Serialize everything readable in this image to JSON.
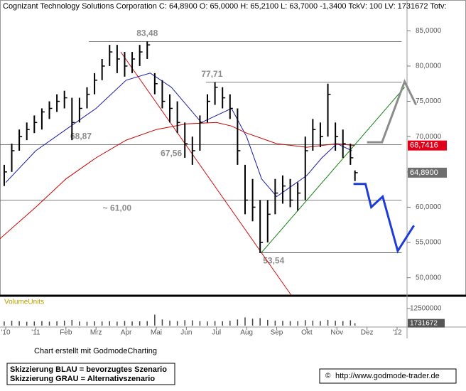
{
  "chart_data": {
    "type": "ohlc",
    "title": "Cognizant Technology Solutions Corporation C: 64,8900 O: 65,0000 H: 65,2100 L: 63,7000 -1,3400 TckV: 100 LV: 1731672 Totv:",
    "xlim": [
      -0.19,
      13.33
    ],
    "xticks": [
      {
        "value": 0,
        "label": "'10"
      },
      {
        "value": 1,
        "label": "'11"
      },
      {
        "value": 2,
        "label": "Feb"
      },
      {
        "value": 3,
        "label": "Mrz"
      },
      {
        "value": 4,
        "label": "Apr"
      },
      {
        "value": 5,
        "label": "Mai"
      },
      {
        "value": 6,
        "label": "Jun"
      },
      {
        "value": 7,
        "label": "Jul"
      },
      {
        "value": 8,
        "label": "Aug"
      },
      {
        "value": 9,
        "label": "Sep"
      },
      {
        "value": 10,
        "label": "Okt"
      },
      {
        "value": 11,
        "label": "Nov"
      },
      {
        "value": 12,
        "label": "Dez"
      },
      {
        "value": 13,
        "label": "'12"
      }
    ],
    "ylim": [
      47.55,
      87.75
    ],
    "yticks": [
      {
        "value": 50,
        "label": "50,0000"
      },
      {
        "value": 55,
        "label": "55,0000"
      },
      {
        "value": 60,
        "label": "60,0000"
      },
      {
        "value": 65,
        "label": "65,0000"
      },
      {
        "value": 70,
        "label": "70,0000"
      },
      {
        "value": 75,
        "label": "75,0000"
      },
      {
        "value": 80,
        "label": "80,0000"
      },
      {
        "value": 85,
        "label": "85,0000"
      }
    ],
    "color": "#000000",
    "x": [
      -0.05,
      0.2,
      0.45,
      0.7,
      0.95,
      1.2,
      1.45,
      1.7,
      1.95,
      2.2,
      2.45,
      2.7,
      2.95,
      3.2,
      3.45,
      3.7,
      3.95,
      4.2,
      4.45,
      4.7,
      4.95,
      5.2,
      5.45,
      5.7,
      5.95,
      6.2,
      6.45,
      6.7,
      6.95,
      7.2,
      7.45,
      7.7,
      7.95,
      8.2,
      8.45,
      8.7,
      8.95,
      9.2,
      9.45,
      9.7,
      9.95,
      10.2,
      10.45,
      10.7,
      10.95,
      11.2,
      11.45,
      11.6
    ],
    "high": [
      66,
      69,
      71,
      72,
      73,
      74,
      75,
      76,
      76.5,
      75.5,
      75.5,
      77,
      79,
      81,
      83,
      83,
      82,
      82,
      83,
      83.48,
      79,
      78,
      76,
      75,
      72,
      70,
      73,
      76,
      77.71,
      77,
      76,
      74,
      66,
      64,
      61,
      61,
      64,
      64.5,
      64,
      63.5,
      70,
      72.5,
      72,
      77.5,
      72,
      71,
      69,
      65.21
    ],
    "low": [
      63,
      65,
      68,
      69.5,
      70.5,
      71,
      72.5,
      73.5,
      74,
      69.5,
      72,
      74,
      76,
      78,
      80,
      79,
      78.5,
      79,
      80,
      81,
      76,
      74,
      72,
      70.5,
      67,
      66,
      68,
      72,
      74.5,
      74,
      72.5,
      66,
      59,
      58,
      53.54,
      55,
      59,
      60.5,
      60,
      59.5,
      61,
      68,
      68.5,
      70,
      68,
      67,
      66,
      63.7
    ],
    "close": [
      65,
      68,
      70,
      71,
      72,
      73.5,
      74,
      75,
      75.5,
      72,
      74,
      76,
      78,
      80,
      82,
      81,
      80,
      81,
      82,
      83,
      77.5,
      75,
      74,
      72,
      69,
      68,
      72,
      75,
      77,
      75.5,
      74,
      68,
      61,
      60,
      55,
      59,
      62,
      63,
      61,
      62,
      68,
      71,
      70,
      76,
      70,
      69,
      67,
      64.89
    ],
    "volume": [
      3000000,
      3500000,
      3200000,
      2800000,
      3000000,
      3300000,
      2900000,
      3100000,
      3600000,
      4200000,
      3000000,
      2800000,
      3100000,
      3000000,
      3200000,
      2900000,
      3400000,
      3000000,
      3100000,
      3300000,
      8000000,
      4500000,
      3600000,
      3300000,
      4000000,
      3800000,
      3200000,
      3000000,
      3300000,
      3100000,
      3500000,
      4500000,
      6000000,
      5000000,
      5500000,
      4200000,
      3600000,
      3400000,
      3300000,
      3200000,
      4000000,
      3600000,
      3300000,
      4200000,
      3500000,
      3300000,
      3900000,
      1731672
    ],
    "volume_title": "VolumeUnits",
    "volume_ylim": [
      0,
      14000000
    ],
    "volume_yticks": [
      12500000
    ],
    "volume_last": 1731672,
    "lines": [
      {
        "color": "#1a1aa8",
        "x": [
          0,
          1,
          2,
          3,
          4,
          4.8,
          5.5,
          6.5,
          7.5,
          8,
          8.5,
          9,
          9.5,
          10,
          10.5,
          11,
          11.5
        ],
        "values": [
          63.5,
          68,
          71,
          74,
          78,
          79,
          77,
          72,
          74,
          70,
          64,
          61.5,
          63,
          64.5,
          67,
          69,
          68
        ]
      },
      {
        "color": "#c80000",
        "x": [
          -0.2,
          1,
          2,
          3,
          4,
          5,
          6,
          7,
          7.5,
          8,
          9,
          10,
          11,
          11.6
        ],
        "values": [
          55.5,
          60,
          64,
          67,
          69.5,
          71,
          71.8,
          72,
          71.5,
          70.5,
          69,
          68.5,
          69,
          68.74
        ]
      },
      {
        "color": "#d01010",
        "x": [
          3.82,
          9.48
        ],
        "values": [
          82,
          47.55
        ]
      },
      {
        "color": "#108010",
        "x": [
          8.49,
          13.25
        ],
        "values": [
          53.54,
          77
        ]
      }
    ],
    "scenarios": [
      {
        "color": "#1e3cdc",
        "x": [
          11.55,
          11.95,
          12.14,
          12.52,
          13.02,
          13.56
        ],
        "values": [
          63.3,
          63.3,
          60,
          61.5,
          53.8,
          57.4
        ]
      },
      {
        "color": "#8c8c8c",
        "x": [
          12.0,
          12.5,
          13.25,
          13.63
        ],
        "values": [
          69.2,
          69.2,
          77.8,
          74.5
        ]
      }
    ],
    "levels": [
      {
        "value": 83.48,
        "label": "83,48",
        "x": [
          2.76,
          13.15
        ],
        "label_x": 4.7
      },
      {
        "value": 77.71,
        "label": "77,71",
        "x": [
          6.65,
          13.15
        ],
        "label_x": 6.85
      },
      {
        "value": 68.87,
        "label": "68,87",
        "x": [
          -0.19,
          13.15
        ],
        "label_x": 2.5
      },
      {
        "value": 61.0,
        "label": "~ 61,00",
        "x": [
          -0.19,
          13.15
        ],
        "label_x": 3.7
      },
      {
        "value": 53.54,
        "label": "53,54",
        "x": [
          8.42,
          13.15
        ],
        "label_x": 8.9
      }
    ],
    "annotations": [
      {
        "text": "67,56",
        "x": 5.5,
        "value": 67.56
      }
    ],
    "price_labels": [
      {
        "value": 68.7416,
        "label": "68,7416",
        "color": "#e0001a"
      },
      {
        "value": 64.89,
        "label": "64,8900",
        "color": "#6e6e6e"
      }
    ]
  },
  "footer": {
    "credit": "Chart erstellt mit GodmodeCharting",
    "legend": [
      "Skizzierung BLAU = bevorzugtes Szenario",
      "Skizzierung GRAU = Alternativszenario"
    ],
    "url": "http://www.godmode-trader.de"
  }
}
